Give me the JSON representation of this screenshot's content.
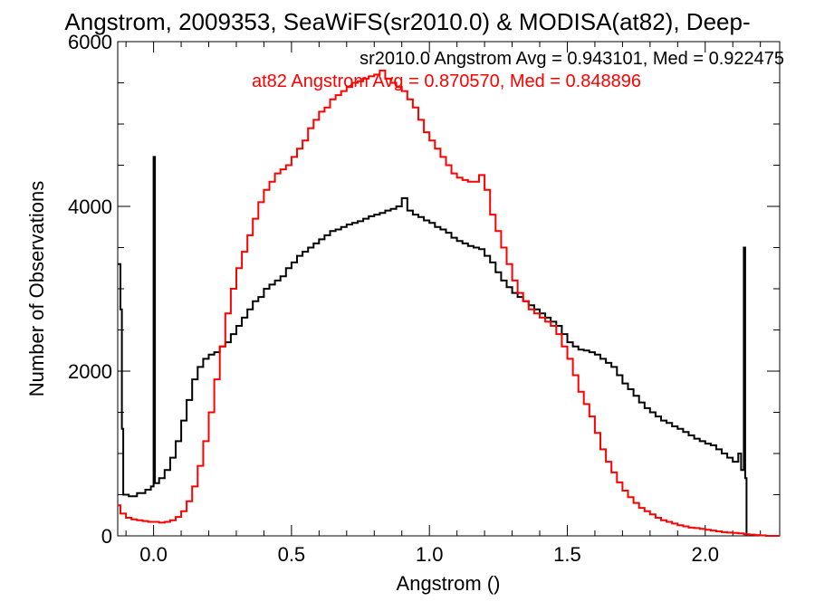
{
  "chart_data": {
    "type": "line",
    "title": "Angstrom, 2009353, SeaWiFS(sr2010.0) & MODISA(at82), Deep-",
    "xlabel": "Angstrom ()",
    "ylabel": "Number of Observations",
    "xlim": [
      -0.13,
      2.27
    ],
    "ylim": [
      0,
      6000
    ],
    "x_ticks": [
      0.0,
      0.5,
      1.0,
      1.5,
      2.0
    ],
    "x_tick_labels": [
      "0.0",
      "0.5",
      "1.0",
      "1.5",
      "2.0"
    ],
    "y_ticks": [
      0,
      2000,
      4000,
      6000
    ],
    "y_tick_labels": [
      "0",
      "2000",
      "4000",
      "6000"
    ],
    "grid": false,
    "step": true,
    "series": [
      {
        "name": "sr2010.0",
        "color": "#000000",
        "annotation": "sr2010.0 Angstrom Avg = 0.943101, Med = 0.922475",
        "points": [
          [
            -0.13,
            3300
          ],
          [
            -0.12,
            2750
          ],
          [
            -0.115,
            1300
          ],
          [
            -0.11,
            500
          ],
          [
            -0.09,
            480
          ],
          [
            -0.06,
            520
          ],
          [
            -0.03,
            560
          ],
          [
            -0.01,
            600
          ],
          [
            0.0,
            4600
          ],
          [
            0.005,
            640
          ],
          [
            0.02,
            700
          ],
          [
            0.04,
            800
          ],
          [
            0.06,
            950
          ],
          [
            0.08,
            1150
          ],
          [
            0.1,
            1400
          ],
          [
            0.12,
            1650
          ],
          [
            0.14,
            1900
          ],
          [
            0.16,
            2050
          ],
          [
            0.18,
            2150
          ],
          [
            0.2,
            2200
          ],
          [
            0.22,
            2230
          ],
          [
            0.24,
            2300
          ],
          [
            0.26,
            2350
          ],
          [
            0.28,
            2450
          ],
          [
            0.3,
            2550
          ],
          [
            0.32,
            2650
          ],
          [
            0.34,
            2750
          ],
          [
            0.36,
            2850
          ],
          [
            0.38,
            2900
          ],
          [
            0.4,
            3000
          ],
          [
            0.42,
            3050
          ],
          [
            0.44,
            3100
          ],
          [
            0.46,
            3150
          ],
          [
            0.48,
            3250
          ],
          [
            0.5,
            3320
          ],
          [
            0.52,
            3400
          ],
          [
            0.54,
            3450
          ],
          [
            0.56,
            3500
          ],
          [
            0.58,
            3550
          ],
          [
            0.6,
            3600
          ],
          [
            0.62,
            3650
          ],
          [
            0.64,
            3700
          ],
          [
            0.66,
            3720
          ],
          [
            0.68,
            3750
          ],
          [
            0.7,
            3780
          ],
          [
            0.72,
            3800
          ],
          [
            0.74,
            3820
          ],
          [
            0.76,
            3850
          ],
          [
            0.78,
            3880
          ],
          [
            0.8,
            3900
          ],
          [
            0.82,
            3920
          ],
          [
            0.84,
            3950
          ],
          [
            0.86,
            3970
          ],
          [
            0.88,
            4000
          ],
          [
            0.9,
            4100
          ],
          [
            0.92,
            3950
          ],
          [
            0.94,
            3900
          ],
          [
            0.96,
            3870
          ],
          [
            0.98,
            3830
          ],
          [
            1.0,
            3800
          ],
          [
            1.02,
            3750
          ],
          [
            1.04,
            3720
          ],
          [
            1.06,
            3680
          ],
          [
            1.08,
            3620
          ],
          [
            1.1,
            3580
          ],
          [
            1.12,
            3550
          ],
          [
            1.14,
            3520
          ],
          [
            1.16,
            3500
          ],
          [
            1.18,
            3480
          ],
          [
            1.2,
            3400
          ],
          [
            1.22,
            3320
          ],
          [
            1.24,
            3200
          ],
          [
            1.26,
            3100
          ],
          [
            1.28,
            3020
          ],
          [
            1.3,
            2950
          ],
          [
            1.32,
            2900
          ],
          [
            1.34,
            2850
          ],
          [
            1.36,
            2800
          ],
          [
            1.38,
            2750
          ],
          [
            1.4,
            2700
          ],
          [
            1.42,
            2650
          ],
          [
            1.44,
            2600
          ],
          [
            1.46,
            2550
          ],
          [
            1.48,
            2450
          ],
          [
            1.5,
            2350
          ],
          [
            1.52,
            2300
          ],
          [
            1.54,
            2260
          ],
          [
            1.56,
            2250
          ],
          [
            1.58,
            2230
          ],
          [
            1.6,
            2200
          ],
          [
            1.62,
            2150
          ],
          [
            1.64,
            2100
          ],
          [
            1.66,
            2050
          ],
          [
            1.68,
            1950
          ],
          [
            1.7,
            1850
          ],
          [
            1.72,
            1780
          ],
          [
            1.74,
            1700
          ],
          [
            1.76,
            1620
          ],
          [
            1.78,
            1550
          ],
          [
            1.8,
            1500
          ],
          [
            1.82,
            1450
          ],
          [
            1.84,
            1400
          ],
          [
            1.86,
            1370
          ],
          [
            1.88,
            1330
          ],
          [
            1.9,
            1300
          ],
          [
            1.92,
            1260
          ],
          [
            1.94,
            1220
          ],
          [
            1.96,
            1180
          ],
          [
            1.98,
            1150
          ],
          [
            2.0,
            1120
          ],
          [
            2.02,
            1100
          ],
          [
            2.04,
            1050
          ],
          [
            2.06,
            1000
          ],
          [
            2.08,
            950
          ],
          [
            2.1,
            900
          ],
          [
            2.12,
            1000
          ],
          [
            2.13,
            800
          ],
          [
            2.14,
            3500
          ],
          [
            2.145,
            700
          ],
          [
            2.15,
            0
          ]
        ]
      },
      {
        "name": "at82",
        "color": "#ff0000",
        "annotation": "at82 Angstrom Avg = 0.870570, Med = 0.848896",
        "points": [
          [
            -0.13,
            370
          ],
          [
            -0.12,
            270
          ],
          [
            -0.1,
            220
          ],
          [
            -0.08,
            200
          ],
          [
            -0.06,
            190
          ],
          [
            -0.04,
            180
          ],
          [
            -0.02,
            170
          ],
          [
            0.0,
            170
          ],
          [
            0.02,
            160
          ],
          [
            0.04,
            170
          ],
          [
            0.06,
            190
          ],
          [
            0.08,
            230
          ],
          [
            0.1,
            300
          ],
          [
            0.12,
            420
          ],
          [
            0.14,
            600
          ],
          [
            0.16,
            850
          ],
          [
            0.18,
            1150
          ],
          [
            0.2,
            1500
          ],
          [
            0.22,
            1900
          ],
          [
            0.24,
            2300
          ],
          [
            0.26,
            2700
          ],
          [
            0.28,
            3000
          ],
          [
            0.3,
            3250
          ],
          [
            0.32,
            3450
          ],
          [
            0.34,
            3650
          ],
          [
            0.36,
            3850
          ],
          [
            0.38,
            4050
          ],
          [
            0.4,
            4200
          ],
          [
            0.42,
            4300
          ],
          [
            0.44,
            4400
          ],
          [
            0.46,
            4450
          ],
          [
            0.48,
            4500
          ],
          [
            0.5,
            4600
          ],
          [
            0.52,
            4700
          ],
          [
            0.54,
            4800
          ],
          [
            0.56,
            4950
          ],
          [
            0.58,
            5050
          ],
          [
            0.6,
            5150
          ],
          [
            0.62,
            5200
          ],
          [
            0.64,
            5300
          ],
          [
            0.66,
            5350
          ],
          [
            0.68,
            5400
          ],
          [
            0.7,
            5450
          ],
          [
            0.72,
            5500
          ],
          [
            0.74,
            5520
          ],
          [
            0.76,
            5550
          ],
          [
            0.78,
            5580
          ],
          [
            0.8,
            5600
          ],
          [
            0.82,
            5650
          ],
          [
            0.84,
            5550
          ],
          [
            0.86,
            5500
          ],
          [
            0.88,
            5450
          ],
          [
            0.9,
            5400
          ],
          [
            0.92,
            5300
          ],
          [
            0.94,
            5200
          ],
          [
            0.96,
            5050
          ],
          [
            0.98,
            4900
          ],
          [
            1.0,
            4800
          ],
          [
            1.02,
            4700
          ],
          [
            1.04,
            4600
          ],
          [
            1.06,
            4500
          ],
          [
            1.08,
            4400
          ],
          [
            1.1,
            4350
          ],
          [
            1.12,
            4320
          ],
          [
            1.14,
            4300
          ],
          [
            1.16,
            4300
          ],
          [
            1.18,
            4380
          ],
          [
            1.2,
            4200
          ],
          [
            1.22,
            3900
          ],
          [
            1.24,
            3700
          ],
          [
            1.26,
            3500
          ],
          [
            1.28,
            3300
          ],
          [
            1.3,
            3100
          ],
          [
            1.32,
            2950
          ],
          [
            1.34,
            2850
          ],
          [
            1.36,
            2750
          ],
          [
            1.38,
            2700
          ],
          [
            1.4,
            2650
          ],
          [
            1.42,
            2600
          ],
          [
            1.44,
            2550
          ],
          [
            1.46,
            2450
          ],
          [
            1.48,
            2300
          ],
          [
            1.5,
            2150
          ],
          [
            1.52,
            1950
          ],
          [
            1.54,
            1750
          ],
          [
            1.56,
            1600
          ],
          [
            1.58,
            1450
          ],
          [
            1.6,
            1250
          ],
          [
            1.62,
            1050
          ],
          [
            1.64,
            900
          ],
          [
            1.66,
            770
          ],
          [
            1.68,
            650
          ],
          [
            1.7,
            550
          ],
          [
            1.72,
            470
          ],
          [
            1.74,
            400
          ],
          [
            1.76,
            340
          ],
          [
            1.78,
            300
          ],
          [
            1.8,
            260
          ],
          [
            1.82,
            220
          ],
          [
            1.84,
            190
          ],
          [
            1.86,
            170
          ],
          [
            1.88,
            150
          ],
          [
            1.9,
            130
          ],
          [
            1.92,
            115
          ],
          [
            1.94,
            100
          ],
          [
            1.96,
            95
          ],
          [
            1.98,
            85
          ],
          [
            2.0,
            75
          ],
          [
            2.02,
            65
          ],
          [
            2.04,
            55
          ],
          [
            2.06,
            45
          ],
          [
            2.08,
            40
          ],
          [
            2.1,
            35
          ],
          [
            2.12,
            30
          ],
          [
            2.14,
            20
          ],
          [
            2.16,
            15
          ],
          [
            2.18,
            10
          ],
          [
            2.2,
            5
          ],
          [
            2.22,
            0
          ],
          [
            2.27,
            0
          ]
        ]
      }
    ]
  }
}
